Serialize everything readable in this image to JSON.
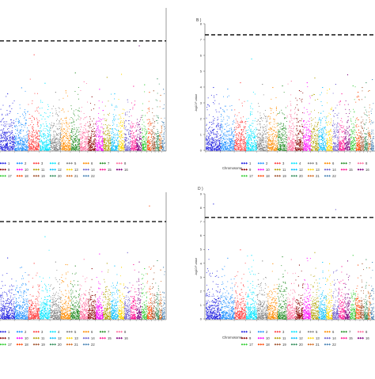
{
  "chart_data": [
    {
      "type": "scatter",
      "panel_label": "",
      "ylabel": "",
      "xlabel": "",
      "threshold_line": 7.3,
      "ylim": [
        0,
        9.5
      ],
      "chromosomes": [
        "1",
        "2",
        "3",
        "4",
        "5",
        "6",
        "7",
        "8",
        "9",
        "10",
        "11",
        "12",
        "13",
        "14",
        "15",
        "16",
        "17",
        "18",
        "19",
        "20",
        "21",
        "22"
      ],
      "peak_per_chromosome": [
        3.8,
        4.2,
        6.4,
        4.5,
        3.9,
        4.0,
        5.2,
        4.6,
        3.6,
        4.1,
        4.9,
        3.8,
        5.1,
        3.4,
        4.3,
        7.0,
        4.4,
        3.9,
        4.0,
        4.8,
        3.7,
        4.1
      ],
      "legend": [
        "1",
        "2",
        "3",
        "4",
        "5",
        "6",
        "7",
        "8",
        "9",
        "10",
        "11",
        "12",
        "13",
        "14",
        "15",
        "16",
        "17",
        "18",
        "19",
        "20",
        "21",
        "22"
      ]
    },
    {
      "type": "scatter",
      "panel_label": "B )",
      "ylabel": "-log10 P-value",
      "xlabel": "Chromosome",
      "threshold_line": 7.3,
      "ylim": [
        0,
        8
      ],
      "ytick_labels": [
        "0",
        "1",
        "2",
        "3",
        "4",
        "5",
        "6",
        "7",
        "8"
      ],
      "chromosomes": [
        "1",
        "2",
        "3",
        "4",
        "5",
        "6",
        "7",
        "8",
        "9",
        "10",
        "11",
        "12",
        "13",
        "14",
        "15",
        "16",
        "17",
        "18",
        "19",
        "20",
        "21",
        "22"
      ],
      "peak_per_chromosome": [
        4.0,
        3.9,
        4.3,
        5.8,
        4.2,
        4.0,
        4.1,
        4.4,
        3.8,
        4.3,
        4.6,
        4.0,
        3.9,
        4.2,
        3.6,
        4.8,
        4.1,
        3.7,
        4.0,
        4.3,
        3.8,
        4.5
      ],
      "legend": [
        "1",
        "2",
        "3",
        "4",
        "5",
        "6",
        "7",
        "8",
        "9",
        "10",
        "11",
        "12",
        "13",
        "14",
        "15",
        "16",
        "17",
        "18",
        "19",
        "20",
        "21",
        "22"
      ]
    },
    {
      "type": "scatter",
      "panel_label": "",
      "ylabel": "",
      "xlabel": "",
      "threshold_line": 7.3,
      "ylim": [
        0,
        9.5
      ],
      "chromosomes": [
        "1",
        "2",
        "3",
        "4",
        "5",
        "6",
        "7",
        "8",
        "9",
        "10",
        "11",
        "12",
        "13",
        "14",
        "15",
        "16",
        "17",
        "18",
        "19",
        "20",
        "21",
        "22"
      ],
      "peak_per_chromosome": [
        4.6,
        3.9,
        4.2,
        6.2,
        4.3,
        4.1,
        4.0,
        4.5,
        3.8,
        4.9,
        4.2,
        4.0,
        3.9,
        5.0,
        4.1,
        4.3,
        3.8,
        8.5,
        4.0,
        4.4,
        3.7,
        3.9
      ],
      "legend": [
        "1",
        "2",
        "3",
        "4",
        "5",
        "6",
        "7",
        "8",
        "9",
        "10",
        "11",
        "12",
        "13",
        "14",
        "15",
        "16",
        "17",
        "18",
        "19",
        "20",
        "21",
        "22"
      ]
    },
    {
      "type": "scatter",
      "panel_label": "D )",
      "ylabel": "-log10 P-value",
      "xlabel": "Chromosome",
      "threshold_line": 7.3,
      "ylim": [
        0,
        9
      ],
      "ytick_labels": [
        "0",
        "1",
        "2",
        "3",
        "4",
        "5",
        "6",
        "7",
        "8",
        "9"
      ],
      "chromosomes": [
        "1",
        "2",
        "3",
        "4",
        "5",
        "6",
        "7",
        "8",
        "9",
        "10",
        "11",
        "12",
        "13",
        "14",
        "15",
        "16",
        "17",
        "18",
        "19",
        "20",
        "21",
        "22"
      ],
      "peak_per_chromosome": [
        8.3,
        4.4,
        5.0,
        4.6,
        4.2,
        4.0,
        4.5,
        4.3,
        3.9,
        4.4,
        4.8,
        4.1,
        4.0,
        7.9,
        3.8,
        4.2,
        4.6,
        3.9,
        4.0,
        4.3,
        3.7,
        4.1
      ],
      "legend": [
        "1",
        "2",
        "3",
        "4",
        "5",
        "6",
        "7",
        "8",
        "9",
        "10",
        "11",
        "12",
        "13",
        "14",
        "15",
        "16",
        "17",
        "18",
        "19",
        "20",
        "21",
        "22"
      ]
    }
  ],
  "chromosome_colors": [
    "#1f1fe0",
    "#1e90ff",
    "#ff3b3b",
    "#00e5ff",
    "#808080",
    "#ff8c00",
    "#228b22",
    "#ff6f9f",
    "#8b0000",
    "#ff00ff",
    "#b0a000",
    "#00bfff",
    "#ffd700",
    "#6a5acd",
    "#ff1493",
    "#800080",
    "#32cd32",
    "#ff4500",
    "#a0522d",
    "#2e8b57",
    "#d2691e",
    "#4682b4"
  ]
}
